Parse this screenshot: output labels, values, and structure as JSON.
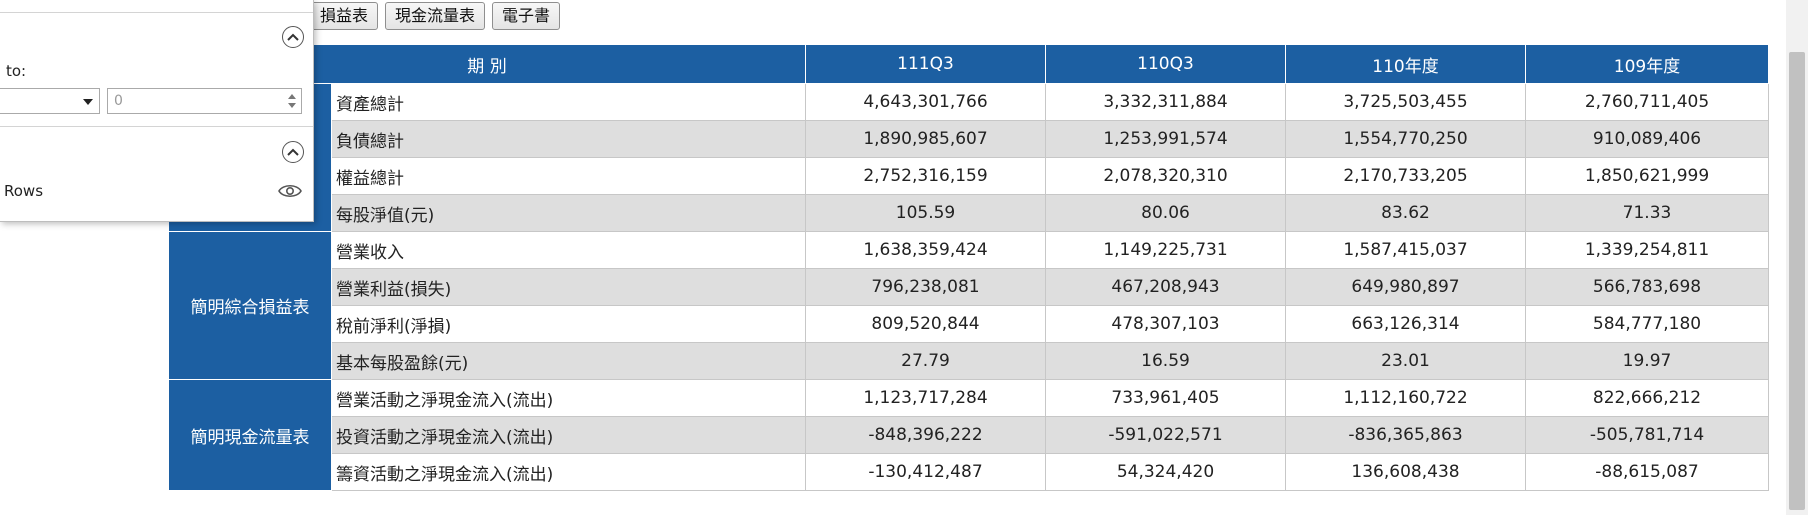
{
  "toolbar": {
    "buttons": [
      "損益表",
      "現金流量表",
      "電子書"
    ]
  },
  "panel": {
    "to_label": "to:",
    "number_value": "0",
    "rows_label": "Rows"
  },
  "table": {
    "header": [
      "期 別",
      "111Q3",
      "110Q3",
      "110年度",
      "109年度"
    ],
    "categories": {
      "income": "簡明綜合損益表",
      "cashflow": "簡明現金流量表"
    },
    "rows": [
      {
        "label": "資產總計",
        "values": [
          "4,643,301,766",
          "3,332,311,884",
          "3,725,503,455",
          "2,760,711,405"
        ]
      },
      {
        "label": "負債總計",
        "values": [
          "1,890,985,607",
          "1,253,991,574",
          "1,554,770,250",
          "910,089,406"
        ]
      },
      {
        "label": "權益總計",
        "values": [
          "2,752,316,159",
          "2,078,320,310",
          "2,170,733,205",
          "1,850,621,999"
        ]
      },
      {
        "label": "每股淨值(元)",
        "values": [
          "105.59",
          "80.06",
          "83.62",
          "71.33"
        ]
      },
      {
        "label": "營業收入",
        "values": [
          "1,638,359,424",
          "1,149,225,731",
          "1,587,415,037",
          "1,339,254,811"
        ]
      },
      {
        "label": "營業利益(損失)",
        "values": [
          "796,238,081",
          "467,208,943",
          "649,980,897",
          "566,783,698"
        ]
      },
      {
        "label": "稅前淨利(淨損)",
        "values": [
          "809,520,844",
          "478,307,103",
          "663,126,314",
          "584,777,180"
        ]
      },
      {
        "label": "基本每股盈餘(元)",
        "values": [
          "27.79",
          "16.59",
          "23.01",
          "19.97"
        ]
      },
      {
        "label": "營業活動之淨現金流入(流出)",
        "values": [
          "1,123,717,284",
          "733,961,405",
          "1,112,160,722",
          "822,666,212"
        ]
      },
      {
        "label": "投資活動之淨現金流入(流出)",
        "values": [
          "-848,396,222",
          "-591,022,571",
          "-836,365,863",
          "-505,781,714"
        ]
      },
      {
        "label": "籌資活動之淨現金流入(流出)",
        "values": [
          "-130,412,487",
          "54,324,420",
          "136,608,438",
          "-88,615,087"
        ]
      }
    ]
  },
  "colors": {
    "header_bg": "#1c5fa2",
    "alt_row_bg": "#dedede"
  }
}
